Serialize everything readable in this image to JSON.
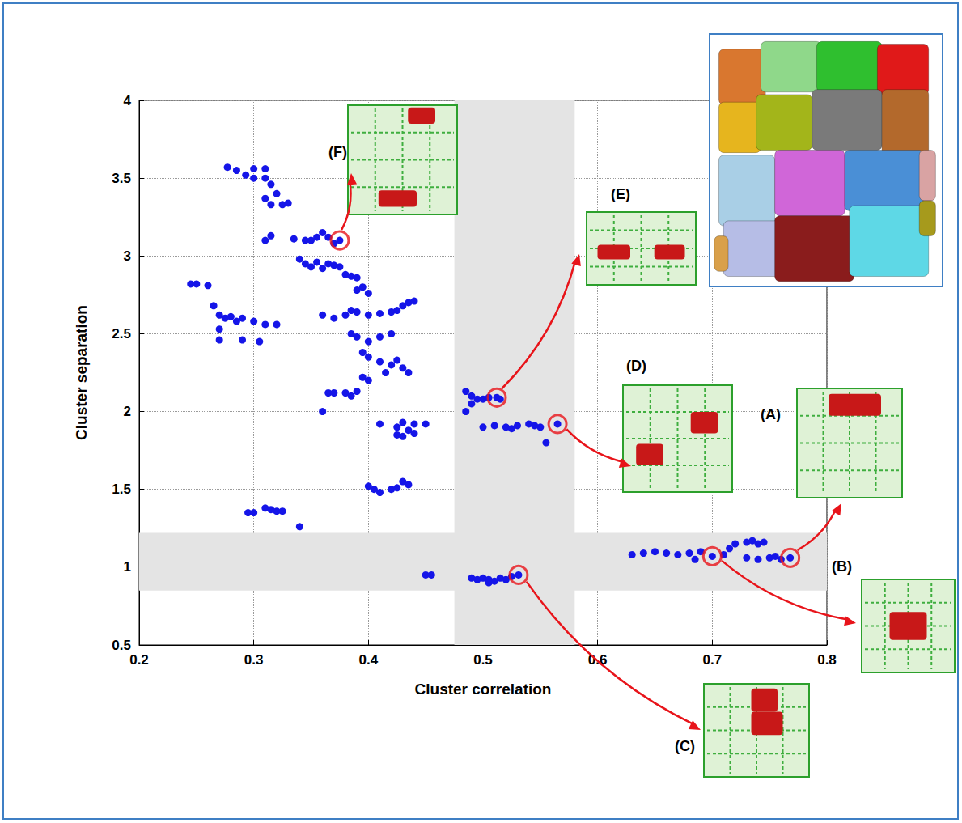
{
  "chart_data": {
    "type": "scatter",
    "x_label": "Cluster correlation",
    "y_label": "Cluster separation",
    "xlim": [
      0.2,
      0.8
    ],
    "xticks": [
      0.2,
      0.3,
      0.4,
      0.5,
      0.6,
      0.7,
      0.8
    ],
    "ylim": [
      0.5,
      4
    ],
    "yticks": [
      0.5,
      1,
      1.5,
      2,
      2.5,
      3,
      3.5,
      4
    ],
    "grid": true,
    "color": "#1515e8",
    "marker": "circle",
    "x": [
      0.277,
      0.285,
      0.293,
      0.3,
      0.3,
      0.31,
      0.31,
      0.315,
      0.32,
      0.31,
      0.315,
      0.325,
      0.33,
      0.31,
      0.315,
      0.335,
      0.345,
      0.35,
      0.355,
      0.36,
      0.365,
      0.37,
      0.375,
      0.34,
      0.345,
      0.35,
      0.355,
      0.36,
      0.365,
      0.37,
      0.375,
      0.38,
      0.385,
      0.39,
      0.36,
      0.37,
      0.38,
      0.385,
      0.39,
      0.4,
      0.41,
      0.42,
      0.43,
      0.435,
      0.44,
      0.425,
      0.39,
      0.395,
      0.4,
      0.385,
      0.39,
      0.4,
      0.41,
      0.42,
      0.395,
      0.4,
      0.41,
      0.42,
      0.43,
      0.425,
      0.435,
      0.415,
      0.365,
      0.37,
      0.38,
      0.385,
      0.39,
      0.395,
      0.4,
      0.36,
      0.245,
      0.25,
      0.26,
      0.265,
      0.27,
      0.275,
      0.28,
      0.285,
      0.29,
      0.27,
      0.29,
      0.3,
      0.31,
      0.32,
      0.27,
      0.305,
      0.41,
      0.425,
      0.43,
      0.435,
      0.44,
      0.45,
      0.43,
      0.44,
      0.425,
      0.4,
      0.405,
      0.41,
      0.42,
      0.425,
      0.43,
      0.435,
      0.295,
      0.3,
      0.31,
      0.315,
      0.32,
      0.325,
      0.34,
      0.45,
      0.455,
      0.485,
      0.49,
      0.495,
      0.5,
      0.505,
      0.512,
      0.515,
      0.485,
      0.49,
      0.5,
      0.51,
      0.52,
      0.53,
      0.54,
      0.55,
      0.565,
      0.555,
      0.545,
      0.525,
      0.49,
      0.495,
      0.5,
      0.505,
      0.51,
      0.515,
      0.52,
      0.525,
      0.531,
      0.505,
      0.63,
      0.64,
      0.65,
      0.66,
      0.67,
      0.68,
      0.685,
      0.69,
      0.7,
      0.71,
      0.715,
      0.72,
      0.73,
      0.735,
      0.74,
      0.745,
      0.73,
      0.74,
      0.75,
      0.755,
      0.76,
      0.768
    ],
    "values": [
      3.57,
      3.55,
      3.52,
      3.56,
      3.5,
      3.56,
      3.5,
      3.46,
      3.4,
      3.37,
      3.33,
      3.33,
      3.34,
      3.1,
      3.13,
      3.11,
      3.1,
      3.1,
      3.12,
      3.15,
      3.12,
      3.08,
      3.1,
      2.98,
      2.95,
      2.93,
      2.96,
      2.92,
      2.95,
      2.94,
      2.93,
      2.88,
      2.87,
      2.86,
      2.62,
      2.6,
      2.62,
      2.65,
      2.64,
      2.62,
      2.63,
      2.64,
      2.68,
      2.7,
      2.71,
      2.65,
      2.78,
      2.8,
      2.76,
      2.5,
      2.48,
      2.45,
      2.48,
      2.5,
      2.38,
      2.35,
      2.32,
      2.3,
      2.28,
      2.33,
      2.25,
      2.25,
      2.12,
      2.12,
      2.12,
      2.1,
      2.13,
      2.22,
      2.2,
      2.0,
      2.82,
      2.82,
      2.81,
      2.68,
      2.62,
      2.6,
      2.61,
      2.58,
      2.6,
      2.53,
      2.46,
      2.58,
      2.56,
      2.56,
      2.46,
      2.45,
      1.92,
      1.9,
      1.93,
      1.88,
      1.92,
      1.92,
      1.84,
      1.86,
      1.85,
      1.52,
      1.5,
      1.48,
      1.5,
      1.51,
      1.55,
      1.53,
      1.35,
      1.35,
      1.38,
      1.37,
      1.36,
      1.36,
      1.26,
      0.95,
      0.95,
      2.13,
      2.1,
      2.08,
      2.08,
      2.09,
      2.09,
      2.08,
      2.0,
      2.05,
      1.9,
      1.91,
      1.9,
      1.91,
      1.92,
      1.9,
      1.92,
      1.8,
      1.91,
      1.89,
      0.93,
      0.92,
      0.93,
      0.92,
      0.91,
      0.93,
      0.92,
      0.94,
      0.95,
      0.9,
      1.08,
      1.09,
      1.1,
      1.09,
      1.08,
      1.09,
      1.05,
      1.1,
      1.07,
      1.08,
      1.12,
      1.15,
      1.16,
      1.17,
      1.15,
      1.16,
      1.06,
      1.05,
      1.06,
      1.07,
      1.05,
      1.06
    ],
    "shaded_x_band": [
      0.475,
      0.58
    ],
    "shaded_y_band": [
      0.85,
      1.22
    ],
    "highlighted": {
      "labels": [
        "(A)",
        "(B)",
        "(C)",
        "(D)",
        "(E)",
        "(F)"
      ],
      "x": [
        0.768,
        0.7,
        0.531,
        0.565,
        0.512,
        0.375
      ],
      "y": [
        1.06,
        1.07,
        0.95,
        1.92,
        2.09,
        3.1
      ]
    }
  }
}
